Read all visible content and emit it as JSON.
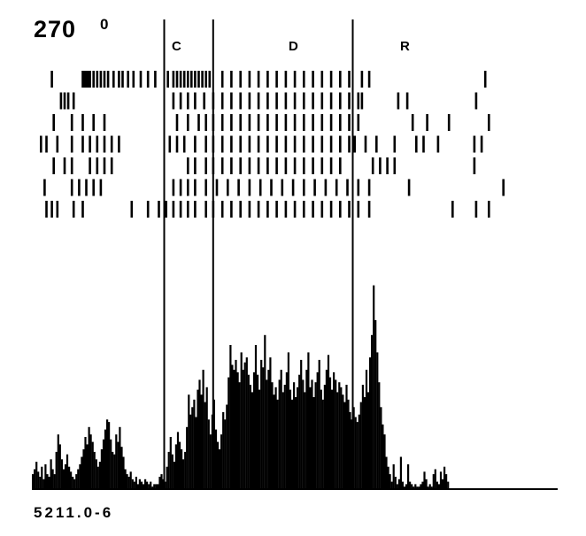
{
  "figure": {
    "direction": "270",
    "direction_sup": "0",
    "code": "5211.0-6"
  },
  "events": [
    {
      "label": "C",
      "time": 1.0
    },
    {
      "label": "D",
      "time": null
    },
    {
      "label": "R",
      "time": 1.77
    }
  ],
  "chart_data": {
    "type": "raster+histogram",
    "title": "",
    "xlabel": "",
    "ylabel": "",
    "xlim": [
      0,
      2.9
    ],
    "ylim": [
      0,
      1
    ],
    "onset_marks": [
      0.73,
      1.0,
      1.77
    ],
    "raster": {
      "trials": 7,
      "spike_times": [
        [
          0.11,
          0.28,
          0.29,
          0.3,
          0.31,
          0.32,
          0.34,
          0.36,
          0.38,
          0.4,
          0.42,
          0.45,
          0.48,
          0.5,
          0.53,
          0.56,
          0.6,
          0.64,
          0.68,
          0.75,
          0.78,
          0.8,
          0.82,
          0.84,
          0.86,
          0.88,
          0.9,
          0.92,
          0.94,
          0.96,
          0.98,
          1.05,
          1.1,
          1.15,
          1.2,
          1.25,
          1.3,
          1.35,
          1.4,
          1.45,
          1.5,
          1.55,
          1.6,
          1.65,
          1.7,
          1.75,
          1.82,
          1.86,
          2.5
        ],
        [
          0.16,
          0.18,
          0.2,
          0.23,
          0.78,
          0.82,
          0.86,
          0.9,
          0.95,
          1.0,
          1.05,
          1.1,
          1.15,
          1.2,
          1.25,
          1.3,
          1.35,
          1.4,
          1.45,
          1.5,
          1.55,
          1.6,
          1.65,
          1.7,
          1.75,
          1.8,
          1.82,
          2.02,
          2.07,
          2.45
        ],
        [
          0.12,
          0.22,
          0.28,
          0.34,
          0.4,
          0.8,
          0.86,
          0.92,
          0.96,
          1.0,
          1.05,
          1.1,
          1.15,
          1.2,
          1.25,
          1.3,
          1.35,
          1.4,
          1.45,
          1.5,
          1.55,
          1.6,
          1.65,
          1.7,
          1.75,
          1.8,
          2.1,
          2.18,
          2.3,
          2.52
        ],
        [
          0.05,
          0.08,
          0.14,
          0.22,
          0.28,
          0.32,
          0.36,
          0.4,
          0.44,
          0.48,
          0.76,
          0.8,
          0.84,
          0.9,
          0.96,
          1.0,
          1.05,
          1.1,
          1.15,
          1.2,
          1.25,
          1.3,
          1.35,
          1.4,
          1.45,
          1.5,
          1.55,
          1.6,
          1.65,
          1.7,
          1.75,
          1.78,
          1.84,
          1.9,
          2.0,
          2.12,
          2.16,
          2.24,
          2.44,
          2.48
        ],
        [
          0.12,
          0.18,
          0.22,
          0.32,
          0.36,
          0.4,
          0.44,
          0.86,
          0.9,
          0.96,
          1.0,
          1.05,
          1.1,
          1.15,
          1.2,
          1.25,
          1.3,
          1.35,
          1.4,
          1.45,
          1.5,
          1.55,
          1.6,
          1.65,
          1.7,
          1.88,
          1.92,
          1.96,
          2.0,
          2.44
        ],
        [
          0.07,
          0.22,
          0.26,
          0.3,
          0.34,
          0.38,
          0.78,
          0.82,
          0.86,
          0.9,
          0.96,
          1.02,
          1.08,
          1.14,
          1.2,
          1.26,
          1.32,
          1.38,
          1.44,
          1.5,
          1.56,
          1.62,
          1.68,
          1.74,
          1.8,
          1.86,
          2.08,
          2.6
        ],
        [
          0.08,
          0.11,
          0.14,
          0.23,
          0.28,
          0.55,
          0.64,
          0.7,
          0.74,
          0.78,
          0.82,
          0.86,
          0.9,
          0.96,
          1.0,
          1.05,
          1.1,
          1.15,
          1.2,
          1.25,
          1.3,
          1.35,
          1.4,
          1.45,
          1.5,
          1.55,
          1.6,
          1.65,
          1.7,
          1.75,
          1.8,
          1.86,
          2.32,
          2.45,
          2.52
        ]
      ]
    },
    "histogram": {
      "bin_start": 0.0,
      "bin_width": 0.01,
      "counts": [
        0.06,
        0.08,
        0.11,
        0.07,
        0.05,
        0.09,
        0.04,
        0.1,
        0.06,
        0.05,
        0.12,
        0.08,
        0.06,
        0.15,
        0.22,
        0.18,
        0.12,
        0.08,
        0.1,
        0.14,
        0.09,
        0.07,
        0.05,
        0.04,
        0.06,
        0.08,
        0.1,
        0.13,
        0.16,
        0.21,
        0.18,
        0.25,
        0.22,
        0.19,
        0.15,
        0.12,
        0.09,
        0.11,
        0.16,
        0.2,
        0.24,
        0.28,
        0.27,
        0.2,
        0.15,
        0.14,
        0.22,
        0.19,
        0.25,
        0.17,
        0.13,
        0.08,
        0.06,
        0.05,
        0.07,
        0.04,
        0.03,
        0.05,
        0.02,
        0.04,
        0.03,
        0.02,
        0.04,
        0.03,
        0.02,
        0.03,
        0.01,
        0.02,
        0.02,
        0.02,
        0.05,
        0.06,
        0.04,
        0.03,
        0.09,
        0.15,
        0.21,
        0.14,
        0.11,
        0.18,
        0.23,
        0.19,
        0.16,
        0.12,
        0.15,
        0.25,
        0.38,
        0.3,
        0.33,
        0.36,
        0.29,
        0.4,
        0.44,
        0.38,
        0.48,
        0.35,
        0.41,
        0.28,
        0.22,
        0.3,
        0.36,
        0.24,
        0.19,
        0.16,
        0.22,
        0.31,
        0.28,
        0.34,
        0.45,
        0.58,
        0.5,
        0.48,
        0.52,
        0.47,
        0.43,
        0.55,
        0.48,
        0.51,
        0.53,
        0.46,
        0.42,
        0.39,
        0.47,
        0.58,
        0.46,
        0.4,
        0.52,
        0.49,
        0.62,
        0.44,
        0.48,
        0.53,
        0.43,
        0.38,
        0.41,
        0.36,
        0.44,
        0.48,
        0.39,
        0.42,
        0.47,
        0.55,
        0.4,
        0.36,
        0.43,
        0.37,
        0.41,
        0.46,
        0.52,
        0.44,
        0.39,
        0.48,
        0.55,
        0.41,
        0.44,
        0.37,
        0.43,
        0.47,
        0.52,
        0.4,
        0.36,
        0.42,
        0.48,
        0.54,
        0.45,
        0.4,
        0.47,
        0.44,
        0.39,
        0.43,
        0.41,
        0.38,
        0.35,
        0.42,
        0.36,
        0.31,
        0.28,
        0.33,
        0.29,
        0.27,
        0.3,
        0.35,
        0.42,
        0.37,
        0.48,
        0.39,
        0.53,
        0.62,
        0.82,
        0.68,
        0.55,
        0.43,
        0.33,
        0.26,
        0.22,
        0.13,
        0.09,
        0.06,
        0.03,
        0.1,
        0.05,
        0.02,
        0.04,
        0.13,
        0.03,
        0.01,
        0.02,
        0.1,
        0.03,
        0.02,
        0.01,
        0.02,
        0.01,
        0.01,
        0.02,
        0.03,
        0.07,
        0.04,
        0.01,
        0.02,
        0.01,
        0.06,
        0.08,
        0.03,
        0.02,
        0.07,
        0.04,
        0.09,
        0.06,
        0.03
      ]
    },
    "colors": {
      "ink": "#000000",
      "background": "#ffffff"
    }
  }
}
